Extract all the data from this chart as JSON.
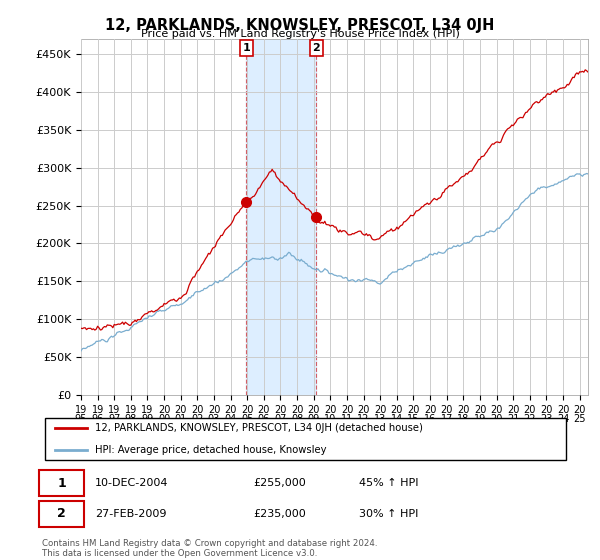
{
  "title": "12, PARKLANDS, KNOWSLEY, PRESCOT, L34 0JH",
  "subtitle": "Price paid vs. HM Land Registry's House Price Index (HPI)",
  "ylabel_ticks": [
    "£0",
    "£50K",
    "£100K",
    "£150K",
    "£200K",
    "£250K",
    "£300K",
    "£350K",
    "£400K",
    "£450K"
  ],
  "ytick_vals": [
    0,
    50000,
    100000,
    150000,
    200000,
    250000,
    300000,
    350000,
    400000,
    450000
  ],
  "ylim": [
    0,
    470000
  ],
  "xlim_start": 1995.0,
  "xlim_end": 2025.5,
  "transaction1": {
    "date_label": "10-DEC-2004",
    "date_x": 2004.94,
    "price": 255000,
    "pct": "45%",
    "label": "1"
  },
  "transaction2": {
    "date_label": "27-FEB-2009",
    "date_x": 2009.15,
    "price": 235000,
    "pct": "30%",
    "label": "2"
  },
  "shaded_color": "#ddeeff",
  "red_line_color": "#cc0000",
  "blue_line_color": "#7aadcf",
  "grid_color": "#cccccc",
  "footnote": "Contains HM Land Registry data © Crown copyright and database right 2024.\nThis data is licensed under the Open Government Licence v3.0.",
  "legend_label1": "12, PARKLANDS, KNOWSLEY, PRESCOT, L34 0JH (detached house)",
  "legend_label2": "HPI: Average price, detached house, Knowsley"
}
